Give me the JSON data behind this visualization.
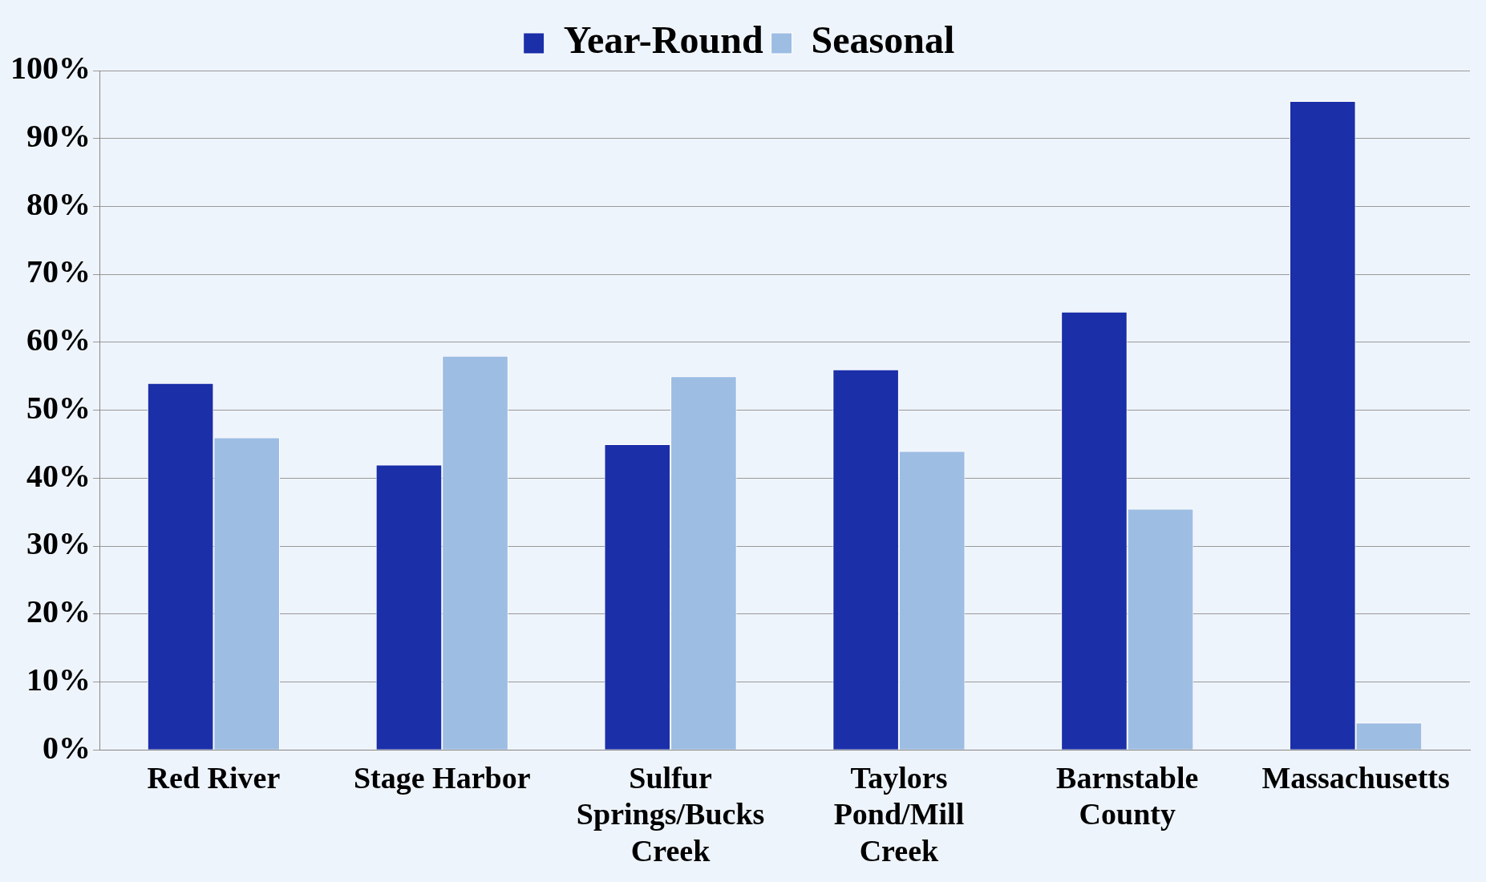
{
  "chart_data": {
    "type": "bar",
    "categories": [
      "Red River",
      "Stage Harbor",
      "Sulfur Springs/Bucks Creek",
      "Taylors Pond/Mill Creek",
      "Barnstable County",
      "Massachusetts"
    ],
    "series": [
      {
        "name": "Year-Round",
        "color": "#1a2fa8",
        "values": [
          54,
          42,
          45,
          56,
          64.5,
          95.5
        ]
      },
      {
        "name": "Seasonal",
        "color": "#9dbde3",
        "values": [
          46,
          58,
          55,
          44,
          35.5,
          4
        ]
      }
    ],
    "ylim": [
      0,
      100
    ],
    "yticks": [
      {
        "value": 0,
        "label": "0%"
      },
      {
        "value": 10,
        "label": "10%"
      },
      {
        "value": 20,
        "label": "20%"
      },
      {
        "value": 30,
        "label": "30%"
      },
      {
        "value": 40,
        "label": "40%"
      },
      {
        "value": 50,
        "label": "50%"
      },
      {
        "value": 60,
        "label": "60%"
      },
      {
        "value": 70,
        "label": "70%"
      },
      {
        "value": 80,
        "label": "80%"
      },
      {
        "value": 90,
        "label": "90%"
      },
      {
        "value": 100,
        "label": "100%"
      }
    ],
    "grid": "y",
    "legend": "top"
  }
}
